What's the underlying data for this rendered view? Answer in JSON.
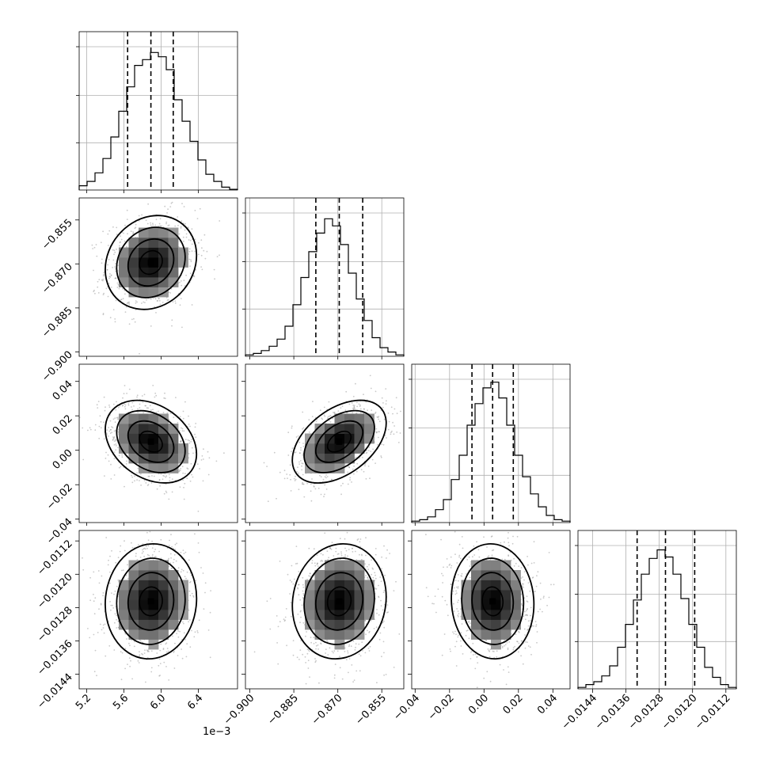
{
  "chart_data": {
    "type": "corner",
    "params": [
      {
        "range": [
          5.12,
          6.82
        ],
        "ticks": [
          5.2,
          5.6,
          6.0,
          6.4
        ],
        "ticklabels": [
          "5.2",
          "5.6",
          "6.0",
          "6.4"
        ],
        "offset_text": "1e−3",
        "mean": 5.89,
        "quantiles": [
          5.64,
          5.89,
          6.13
        ],
        "hist": [
          0.03,
          0.06,
          0.12,
          0.22,
          0.37,
          0.55,
          0.72,
          0.87,
          0.91,
          0.96,
          0.93,
          0.84,
          0.63,
          0.48,
          0.34,
          0.21,
          0.11,
          0.06,
          0.02,
          0.005
        ]
      },
      {
        "range": [
          -0.9015,
          -0.8475
        ],
        "ticks": [
          -0.9,
          -0.885,
          -0.87,
          -0.855
        ],
        "ticklabels": [
          "−0.900",
          "−0.885",
          "−0.870",
          "−0.855"
        ],
        "mean": -0.8695,
        "quantiles": [
          -0.8775,
          -0.8695,
          -0.8615
        ],
        "hist": [
          0.01,
          0.02,
          0.04,
          0.07,
          0.12,
          0.21,
          0.36,
          0.55,
          0.73,
          0.86,
          0.96,
          0.91,
          0.78,
          0.58,
          0.4,
          0.25,
          0.13,
          0.06,
          0.03,
          0.01
        ]
      },
      {
        "range": [
          -0.042,
          0.05
        ],
        "ticks": [
          -0.04,
          -0.02,
          0.0,
          0.02,
          0.04
        ],
        "ticklabels": [
          "−0.04",
          "−0.02",
          "0.00",
          "0.02",
          "0.04"
        ],
        "mean": 0.005,
        "quantiles": [
          -0.007,
          0.005,
          0.017
        ],
        "hist": [
          0.01,
          0.02,
          0.04,
          0.09,
          0.16,
          0.3,
          0.47,
          0.68,
          0.83,
          0.94,
          0.98,
          0.87,
          0.68,
          0.47,
          0.32,
          0.2,
          0.11,
          0.05,
          0.02,
          0.01
        ]
      },
      {
        "range": [
          -0.01475,
          -0.01095
        ],
        "ticks": [
          -0.0144,
          -0.0136,
          -0.0128,
          -0.012,
          -0.0112
        ],
        "ticklabels": [
          "−0.0144",
          "−0.0136",
          "−0.0128",
          "−0.0120",
          "−0.0112"
        ],
        "mean": -0.01265,
        "quantiles": [
          -0.01333,
          -0.01265,
          -0.01195
        ],
        "hist": [
          0.01,
          0.03,
          0.05,
          0.09,
          0.16,
          0.29,
          0.45,
          0.62,
          0.8,
          0.91,
          0.97,
          0.92,
          0.8,
          0.63,
          0.45,
          0.29,
          0.15,
          0.08,
          0.03,
          0.01
        ]
      }
    ],
    "correlations": [
      {
        "i": 1,
        "j": 0,
        "rho": 0.15
      },
      {
        "i": 2,
        "j": 0,
        "rho": -0.3
      },
      {
        "i": 2,
        "j": 1,
        "rho": 0.45
      },
      {
        "i": 3,
        "j": 0,
        "rho": 0.05
      },
      {
        "i": 3,
        "j": 1,
        "rho": 0.08
      },
      {
        "i": 3,
        "j": 2,
        "rho": -0.05
      }
    ],
    "contour_levels_sigma": [
      0.5,
      1.0,
      1.5,
      2.0
    ],
    "colors": {
      "hist": "#000000",
      "quantile_line": "#000000",
      "points": "#888888",
      "grid": "#b0b0b0"
    }
  }
}
